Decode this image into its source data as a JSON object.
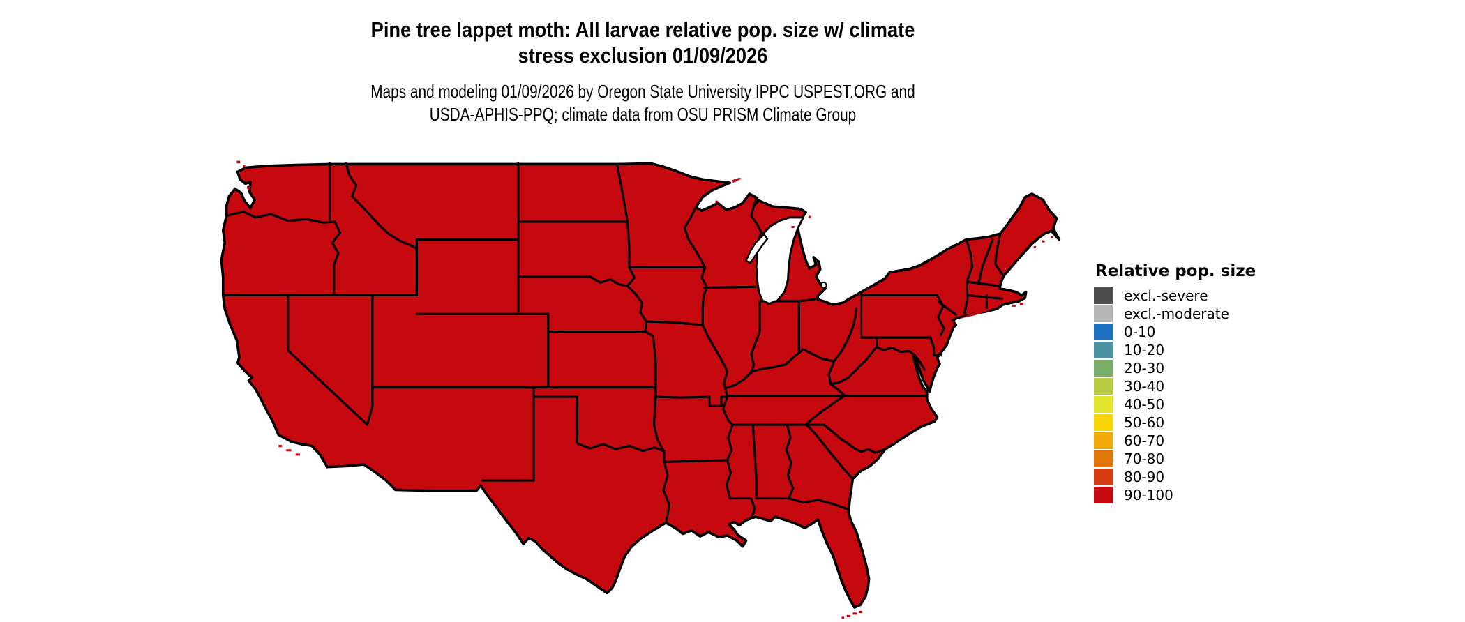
{
  "title": {
    "line1": "Pine tree lappet moth: All larvae relative pop. size w/ climate",
    "line2": "stress exclusion 01/09/2026"
  },
  "subtitle": {
    "line1": "Maps and modeling 01/09/2026 by Oregon State University IPPC USPEST.ORG and",
    "line2": "USDA-APHIS-PPQ; climate data from OSU PRISM Climate Group"
  },
  "legend": {
    "title": "Relative pop. size",
    "entries": [
      {
        "label": "excl.-severe",
        "color": "#4d4d4d"
      },
      {
        "label": "excl.-moderate",
        "color": "#b5b5b5"
      },
      {
        "label": "0-10",
        "color": "#1d6fc2"
      },
      {
        "label": "10-20",
        "color": "#4a91a3"
      },
      {
        "label": "20-30",
        "color": "#7bad6b"
      },
      {
        "label": "30-40",
        "color": "#b6cb41"
      },
      {
        "label": "40-50",
        "color": "#e2e32b"
      },
      {
        "label": "50-60",
        "color": "#f9d506"
      },
      {
        "label": "60-70",
        "color": "#efa90a"
      },
      {
        "label": "70-80",
        "color": "#e1760a"
      },
      {
        "label": "80-90",
        "color": "#d43b10"
      },
      {
        "label": "90-100",
        "color": "#c6090e"
      }
    ]
  },
  "map": {
    "region": "Contiguous United States",
    "all_states_class": "90-100",
    "land_color": "#c6090e",
    "water_color": "#ffffff",
    "border_color": "#000000"
  }
}
